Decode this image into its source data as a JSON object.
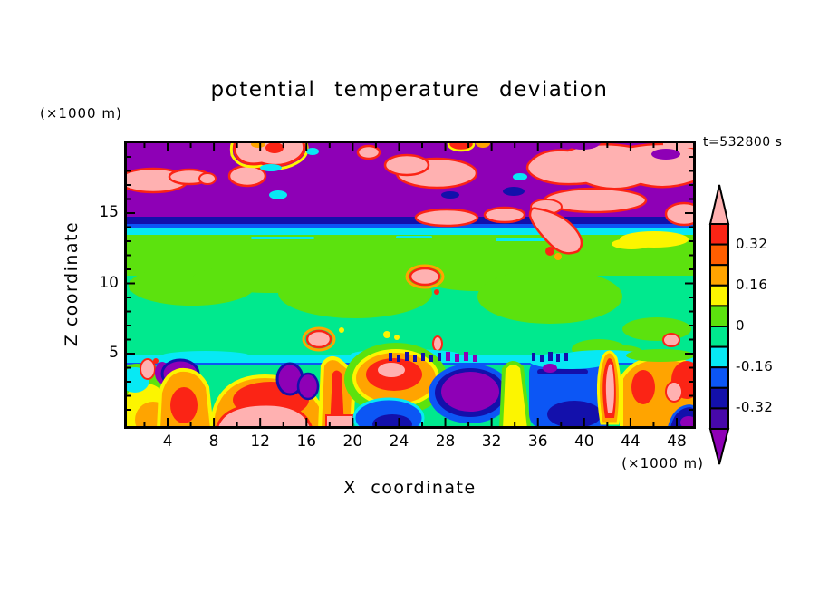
{
  "palette": {
    "pink": "#ffb1b1",
    "red": "#fb2415",
    "orangered": "#ff5e00",
    "orange": "#ffa400",
    "yellow": "#fcf500",
    "lime": "#5ce20e",
    "spring": "#00e98e",
    "cyan": "#07e9f4",
    "blue": "#0c56f5",
    "navy": "#1310ab",
    "indigo": "#4708ab",
    "purple": "#8e00b6",
    "frame": "#000000"
  },
  "chart_data": {
    "type": "filled_contour",
    "title": "potential temperature deviation",
    "xlabel": "X coordinate",
    "ylabel": "Z coordinate",
    "x_unit": "(×1000 m)",
    "y_unit": "(×1000 m)",
    "annotation": "t=532800 s",
    "xlim": [
      0.25,
      49.75
    ],
    "ylim": [
      0,
      20.3
    ],
    "x_major_ticks": [
      4,
      8,
      12,
      16,
      20,
      24,
      28,
      32,
      36,
      40,
      44,
      48
    ],
    "x_minor_interval": 2,
    "y_major_ticks": [
      5,
      10,
      15
    ],
    "y_minor_interval": 1,
    "contour_interval": 0.08,
    "levels": [
      -0.4,
      -0.32,
      -0.24,
      -0.16,
      -0.08,
      0,
      0.08,
      0.16,
      0.24,
      0.32,
      0.4
    ],
    "colorbar_labels": [
      "0.32",
      "0.16",
      "0",
      "-0.16",
      "-0.32"
    ],
    "colorbar_cells_top_to_bottom": [
      "red",
      "orangered",
      "orange",
      "yellow",
      "lime",
      "spring",
      "cyan",
      "blue",
      "navy",
      "indigo"
    ],
    "colorbar_over_color": "pink",
    "colorbar_under_color": "purple",
    "legend_position": "right",
    "field_structure": [
      {
        "z_range_km": [
          14.5,
          20.3
        ],
        "value_range": "< -0.40 background with scattered > 0.40 anomalies",
        "appearance": "purple background with pink gravity-wave blobs rimmed in red/yellow/cyan"
      },
      {
        "z_range_km": [
          13.8,
          14.5
        ],
        "value_range": "-0.40 to -0.16",
        "appearance": "thin navy/blue horizontal band (tropopause)"
      },
      {
        "z_range_km": [
          13.2,
          13.8
        ],
        "value_range": "-0.16 to -0.08",
        "appearance": "cyan band"
      },
      {
        "z_range_km": [
          10.5,
          13.2
        ],
        "value_range": "0 to 0.08",
        "appearance": "yellow-green band, 0.08-0.16 yellow patch near x=44-47, ragged lower edge"
      },
      {
        "z_range_km": [
          5.5,
          10.5
        ],
        "value_range": "-0.08 to 0",
        "appearance": "green band with a few small pink/red/yellow anomalies"
      },
      {
        "z_range_km": [
          5.0,
          5.5
        ],
        "value_range": "-0.24 to -0.08 with < -0.40 wave crests",
        "appearance": "wavy cyan/blue inversion layer dotted with small purple/navy spots"
      },
      {
        "z_range_km": [
          0,
          5.0
        ],
        "value_range": "-0.40 to > 0.40",
        "appearance": "convective boundary layer: orange/red/pink warm plumes alternating with blue/navy/purple cold pools"
      }
    ]
  }
}
